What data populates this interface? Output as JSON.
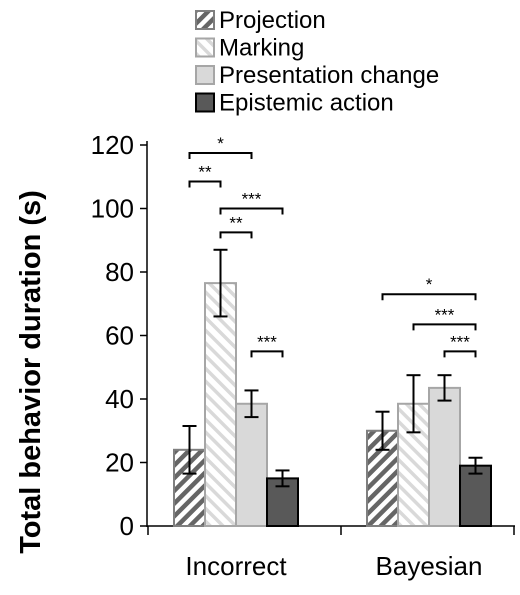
{
  "chart_data": {
    "type": "bar",
    "title": "",
    "xlabel": "",
    "ylabel": "Total behavior duration (s)",
    "ylim": [
      0,
      120
    ],
    "yticks": [
      0,
      20,
      40,
      60,
      80,
      100,
      120
    ],
    "grid": false,
    "legend_position": "top",
    "categories": [
      "Incorrect",
      "Bayesian"
    ],
    "series": [
      {
        "name": "Projection",
        "values": [
          24,
          30
        ],
        "error": [
          7.5,
          6
        ],
        "fill": "hatch",
        "color": "#666666"
      },
      {
        "name": "Marking",
        "values": [
          76.5,
          38.5
        ],
        "error": [
          10.5,
          9
        ],
        "fill": "hatch",
        "color": "#bfbfbf"
      },
      {
        "name": "Presentation change",
        "values": [
          38.5,
          43.5
        ],
        "error": [
          4.2,
          4
        ],
        "fill": "solid",
        "color": "#d9d9d9"
      },
      {
        "name": "Epistemic action",
        "values": [
          15,
          19
        ],
        "error": [
          2.5,
          2.5
        ],
        "fill": "solid",
        "color": "#595959"
      }
    ],
    "significance": [
      {
        "group": 0,
        "from": 0,
        "to": 2,
        "label": "*",
        "y": 117.5
      },
      {
        "group": 0,
        "from": 0,
        "to": 1,
        "label": "**",
        "y": 108.5
      },
      {
        "group": 0,
        "from": 1,
        "to": 3,
        "label": "***",
        "y": 100
      },
      {
        "group": 0,
        "from": 1,
        "to": 2,
        "label": "**",
        "y": 92.5
      },
      {
        "group": 0,
        "from": 2,
        "to": 3,
        "label": "***",
        "y": 55
      },
      {
        "group": 1,
        "from": 0,
        "to": 3,
        "label": "*",
        "y": 73
      },
      {
        "group": 1,
        "from": 1,
        "to": 3,
        "label": "***",
        "y": 63.5
      },
      {
        "group": 1,
        "from": 2,
        "to": 3,
        "label": "***",
        "y": 55
      }
    ]
  }
}
